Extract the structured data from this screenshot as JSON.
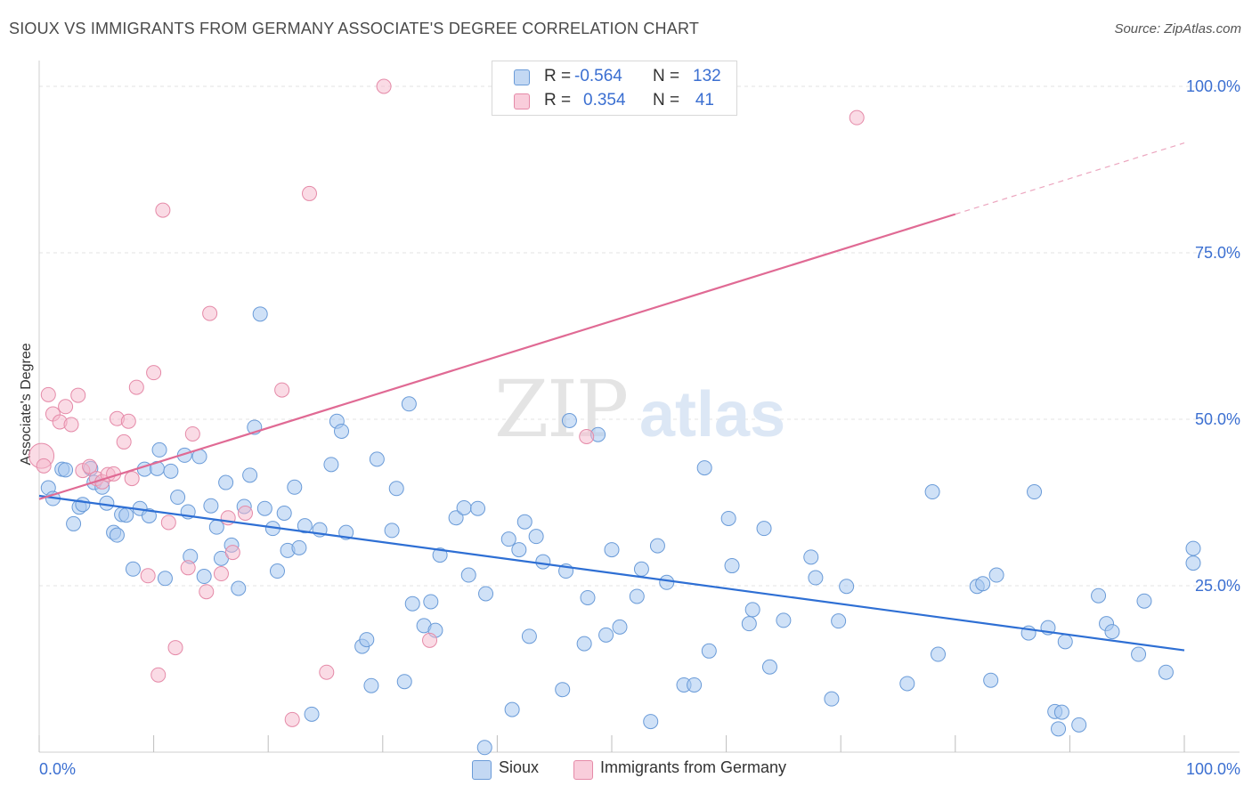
{
  "title": "SIOUX VS IMMIGRANTS FROM GERMANY ASSOCIATE'S DEGREE CORRELATION CHART",
  "source": "Source: ZipAtlas.com",
  "colors": {
    "blue_fill": "#a8c8f0",
    "blue_stroke": "#6a9bd8",
    "blue_line": "#2e6fd4",
    "pink_fill": "#f6b8cb",
    "pink_stroke": "#e58aa8",
    "pink_line": "#e06a94",
    "axis_text": "#3b6fd1",
    "grid": "#e3e3e3"
  },
  "legend_top": {
    "rows": [
      {
        "r_label": "R =",
        "r_value": "-0.564",
        "n_label": "N =",
        "n_value": "132"
      },
      {
        "r_label": "R =",
        "r_value": "0.354",
        "n_label": "N =",
        "n_value": "41"
      }
    ]
  },
  "legend_bottom": {
    "items": [
      {
        "label": "Sioux"
      },
      {
        "label": "Immigrants from Germany"
      }
    ]
  },
  "chart_data": {
    "type": "scatter",
    "ylabel": "Associate's Degree",
    "xlim": [
      0,
      100
    ],
    "ylim": [
      0,
      103
    ],
    "x_tick_labels": [
      "0.0%",
      "100.0%"
    ],
    "y_ticks": [
      25,
      50,
      75,
      100
    ],
    "y_tick_labels": [
      "25.0%",
      "50.0%",
      "75.0%",
      "100.0%"
    ],
    "grid": "dashed horizontal",
    "series": [
      {
        "name": "Sioux",
        "trend": {
          "x0": 0,
          "y0": 38.5,
          "x1": 100,
          "y1": 15.3
        },
        "points": [
          [
            0.8,
            39.7
          ],
          [
            1.2,
            38.1
          ],
          [
            2.0,
            42.5
          ],
          [
            2.3,
            42.4
          ],
          [
            3.0,
            34.3
          ],
          [
            3.5,
            36.8
          ],
          [
            3.8,
            37.2
          ],
          [
            4.5,
            42.6
          ],
          [
            4.8,
            40.5
          ],
          [
            5.5,
            39.8
          ],
          [
            5.9,
            37.4
          ],
          [
            6.5,
            33.0
          ],
          [
            6.8,
            32.6
          ],
          [
            7.2,
            35.7
          ],
          [
            7.6,
            35.6
          ],
          [
            8.2,
            27.5
          ],
          [
            8.8,
            36.6
          ],
          [
            9.2,
            42.5
          ],
          [
            9.6,
            35.5
          ],
          [
            10.3,
            42.6
          ],
          [
            10.5,
            45.4
          ],
          [
            11.0,
            26.1
          ],
          [
            11.5,
            42.2
          ],
          [
            12.1,
            38.3
          ],
          [
            12.7,
            44.6
          ],
          [
            13.0,
            36.1
          ],
          [
            13.2,
            29.4
          ],
          [
            14.0,
            44.4
          ],
          [
            14.4,
            26.4
          ],
          [
            15.0,
            37.0
          ],
          [
            15.5,
            33.8
          ],
          [
            15.9,
            29.1
          ],
          [
            16.3,
            40.5
          ],
          [
            16.8,
            31.1
          ],
          [
            17.4,
            24.6
          ],
          [
            17.9,
            36.9
          ],
          [
            18.4,
            41.6
          ],
          [
            18.8,
            48.8
          ],
          [
            19.3,
            65.8
          ],
          [
            19.7,
            36.6
          ],
          [
            20.4,
            33.6
          ],
          [
            20.8,
            27.2
          ],
          [
            21.4,
            35.9
          ],
          [
            21.7,
            30.3
          ],
          [
            22.3,
            39.8
          ],
          [
            22.7,
            30.7
          ],
          [
            23.2,
            34.0
          ],
          [
            23.8,
            5.7
          ],
          [
            24.5,
            33.4
          ],
          [
            25.5,
            43.2
          ],
          [
            26.0,
            49.7
          ],
          [
            26.4,
            48.2
          ],
          [
            26.8,
            33.0
          ],
          [
            28.2,
            15.9
          ],
          [
            28.6,
            16.9
          ],
          [
            29.0,
            10.0
          ],
          [
            29.5,
            44.0
          ],
          [
            30.8,
            33.3
          ],
          [
            31.2,
            39.6
          ],
          [
            31.9,
            10.6
          ],
          [
            32.3,
            52.3
          ],
          [
            32.6,
            22.3
          ],
          [
            33.6,
            19.0
          ],
          [
            34.2,
            22.6
          ],
          [
            34.6,
            18.3
          ],
          [
            35.0,
            29.6
          ],
          [
            36.4,
            35.2
          ],
          [
            37.1,
            36.7
          ],
          [
            37.5,
            26.6
          ],
          [
            38.3,
            36.6
          ],
          [
            38.9,
            0.7
          ],
          [
            39.0,
            23.8
          ],
          [
            41.0,
            32.0
          ],
          [
            41.3,
            6.4
          ],
          [
            41.9,
            30.4
          ],
          [
            42.4,
            34.6
          ],
          [
            42.8,
            17.4
          ],
          [
            43.4,
            32.4
          ],
          [
            44.0,
            28.6
          ],
          [
            45.7,
            9.4
          ],
          [
            46.0,
            27.2
          ],
          [
            46.3,
            49.8
          ],
          [
            47.6,
            16.3
          ],
          [
            47.9,
            23.2
          ],
          [
            48.8,
            47.7
          ],
          [
            49.5,
            17.6
          ],
          [
            50.0,
            30.4
          ],
          [
            50.7,
            18.8
          ],
          [
            52.2,
            23.4
          ],
          [
            52.6,
            27.5
          ],
          [
            53.4,
            4.6
          ],
          [
            54.0,
            31.0
          ],
          [
            54.8,
            25.5
          ],
          [
            56.3,
            10.1
          ],
          [
            57.2,
            10.1
          ],
          [
            58.1,
            42.7
          ],
          [
            58.5,
            15.2
          ],
          [
            60.2,
            35.1
          ],
          [
            60.5,
            28.0
          ],
          [
            62.0,
            19.3
          ],
          [
            62.3,
            21.4
          ],
          [
            63.3,
            33.6
          ],
          [
            63.8,
            12.8
          ],
          [
            65.0,
            19.8
          ],
          [
            67.4,
            29.3
          ],
          [
            67.8,
            26.2
          ],
          [
            69.2,
            8.0
          ],
          [
            69.8,
            19.7
          ],
          [
            70.5,
            24.9
          ],
          [
            75.8,
            10.3
          ],
          [
            78.0,
            39.1
          ],
          [
            78.5,
            14.7
          ],
          [
            81.9,
            24.9
          ],
          [
            82.4,
            25.3
          ],
          [
            83.1,
            10.8
          ],
          [
            83.6,
            26.6
          ],
          [
            86.4,
            17.9
          ],
          [
            86.9,
            39.1
          ],
          [
            88.1,
            18.7
          ],
          [
            88.7,
            6.1
          ],
          [
            89.0,
            3.5
          ],
          [
            89.3,
            6.0
          ],
          [
            89.6,
            16.6
          ],
          [
            90.8,
            4.1
          ],
          [
            92.5,
            23.5
          ],
          [
            93.2,
            19.3
          ],
          [
            93.7,
            18.1
          ],
          [
            96.0,
            14.7
          ],
          [
            96.5,
            22.7
          ],
          [
            98.4,
            12.0
          ],
          [
            101.3,
            30.6
          ],
          [
            101.8,
            28.4
          ]
        ]
      },
      {
        "name": "Immigrants from Germany",
        "trend": {
          "x0": 0,
          "y0": 38.0,
          "x1": 80,
          "y1": 80.8,
          "dash_to": {
            "x": 100,
            "y": 91.5
          }
        },
        "points": [
          [
            0.2,
            44.5
          ],
          [
            0.8,
            53.7
          ],
          [
            1.2,
            50.8
          ],
          [
            1.8,
            49.6
          ],
          [
            2.3,
            51.9
          ],
          [
            2.8,
            49.2
          ],
          [
            3.4,
            53.6
          ],
          [
            3.8,
            42.3
          ],
          [
            4.4,
            42.9
          ],
          [
            5.0,
            41.1
          ],
          [
            5.5,
            40.6
          ],
          [
            6.0,
            41.7
          ],
          [
            6.5,
            41.8
          ],
          [
            6.8,
            50.1
          ],
          [
            7.4,
            46.6
          ],
          [
            7.8,
            49.7
          ],
          [
            8.1,
            41.1
          ],
          [
            8.5,
            54.8
          ],
          [
            9.5,
            26.5
          ],
          [
            10.0,
            57.0
          ],
          [
            10.4,
            11.6
          ],
          [
            10.8,
            81.4
          ],
          [
            11.3,
            34.5
          ],
          [
            11.9,
            15.7
          ],
          [
            13.0,
            27.7
          ],
          [
            13.4,
            47.8
          ],
          [
            14.6,
            24.1
          ],
          [
            14.9,
            65.9
          ],
          [
            15.9,
            26.8
          ],
          [
            16.5,
            35.2
          ],
          [
            16.9,
            30.0
          ],
          [
            18.0,
            35.9
          ],
          [
            21.2,
            54.4
          ],
          [
            22.1,
            4.9
          ],
          [
            23.6,
            83.9
          ],
          [
            25.1,
            12.0
          ],
          [
            30.1,
            100.0
          ],
          [
            34.1,
            16.8
          ],
          [
            47.8,
            47.4
          ],
          [
            71.4,
            95.3
          ],
          [
            0.4,
            43.0
          ]
        ]
      }
    ]
  }
}
